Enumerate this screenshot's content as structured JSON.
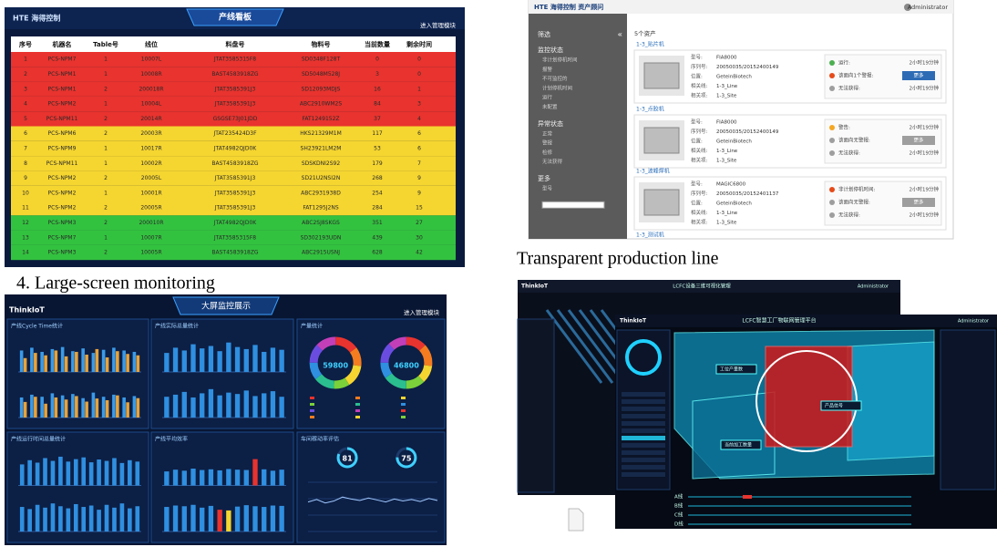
{
  "board": {
    "logo": "HTE 海得控制",
    "title": "产线看板",
    "link": "进入管理模块",
    "columns": [
      "序号",
      "机器名",
      "Table号",
      "线位",
      "料盘号",
      "物料号",
      "当前数量",
      "剩余时间"
    ],
    "rows": [
      [
        1,
        "PCS-NPM7",
        1,
        "10007L",
        "JTAT3585315F8",
        "SD0348F128T",
        0,
        0
      ],
      [
        2,
        "PCS-NPM1",
        1,
        "10008R",
        "BAST4583918ZG",
        "SD5048M528J",
        3,
        0
      ],
      [
        3,
        "PCS-NPM1",
        2,
        "200018R",
        "JTAT3585391J3",
        "SD12093MDJS",
        16,
        1
      ],
      [
        4,
        "PCS-NPM2",
        1,
        "10004L",
        "JTAT3585391J3",
        "ABC2910WM2S",
        84,
        3
      ],
      [
        5,
        "PCS-NPM11",
        2,
        "20014R",
        "GSGSE73J01JDD",
        "FAT1249152Z",
        37,
        4
      ],
      [
        6,
        "PCS-NPM6",
        2,
        "20003R",
        "JTAT235424D3F",
        "HKS21329M1M",
        117,
        6
      ],
      [
        7,
        "PCS-NPM9",
        1,
        "10017R",
        "JTAT4982QJD0K",
        "SH23921LM2M",
        53,
        6
      ],
      [
        8,
        "PCS-NPM11",
        1,
        "10002R",
        "BAST4583918ZG",
        "SDSKDNI2S92",
        179,
        7
      ],
      [
        9,
        "PCS-NPM2",
        2,
        "20005L",
        "JTAT3585391J3",
        "SD21U2NSI2N",
        268,
        9
      ],
      [
        10,
        "PCS-NPM2",
        1,
        "10001R",
        "JTAT3585391J3",
        "ABC2931938D",
        254,
        9
      ],
      [
        11,
        "PCS-NPM2",
        2,
        "20005R",
        "JTAT3585391J3",
        "FAT1295J2NS",
        284,
        15
      ],
      [
        12,
        "PCS-NPM3",
        2,
        "200010R",
        "JTAT4982QJD0K",
        "ABC2SJ8SKGS",
        351,
        27
      ],
      [
        13,
        "PCS-NPM7",
        1,
        "10007R",
        "JTAT3585315F8",
        "SD302193UDN",
        439,
        30
      ],
      [
        14,
        "PCS-NPM3",
        2,
        "10005R",
        "BAST4583918ZG",
        "ABC2915USNJ",
        628,
        42
      ]
    ],
    "row_colors": [
      "#e8332e",
      "#e8332e",
      "#e8332e",
      "#e8332e",
      "#e8332e",
      "#f5d530",
      "#f5d530",
      "#f5d530",
      "#f5d530",
      "#f5d530",
      "#f5d530",
      "#33c23f",
      "#33c23f",
      "#33c23f"
    ]
  },
  "captions": [
    "4. Large-screen monitoring",
    "Transparent production line"
  ],
  "assets": {
    "logo": "HTE 海得控制 资产顾问",
    "user": "Administrator",
    "filter": "筛选",
    "collapse": "«",
    "sidebar": [
      {
        "heading": "监控状态",
        "items": [
          "非计划停机时间",
          "报警",
          "不可监控的",
          "计划停机时间",
          "运行",
          "未配置"
        ]
      },
      {
        "heading": "异常状态",
        "items": [
          "正常",
          "警报",
          "检修",
          "无法获得"
        ]
      },
      {
        "heading": "更多",
        "items": [
          "型号"
        ]
      }
    ],
    "count": "5个资产",
    "cards": [
      {
        "name": "1-3_贴片机",
        "fields": [
          [
            "型号:",
            "FIA8000"
          ],
          [
            "序列号:",
            "20050035/20152400149"
          ],
          [
            "位置:",
            "GeteinBiotech"
          ],
          [
            "相关线:",
            "1-3_Line"
          ],
          [
            "相关项:",
            "1-3_Site"
          ]
        ],
        "status": [
          {
            "label": "运行:",
            "value": "2小时19分钟",
            "color": "#4caf50"
          },
          {
            "label": "该面向1个警报:",
            "value": "更多",
            "color": "#e64a19"
          },
          {
            "label": "无法获得:",
            "value": "2小时19分钟",
            "color": "#9e9e9e"
          }
        ]
      },
      {
        "name": "1-3_点胶机",
        "fields": [
          [
            "型号:",
            "FIA8000"
          ],
          [
            "序列号:",
            "20050035/20152400149"
          ],
          [
            "位置:",
            "GeteinBiotech"
          ],
          [
            "相关线:",
            "1-3_Line"
          ],
          [
            "相关项:",
            "1-3_Site"
          ]
        ],
        "status": [
          {
            "label": "警告:",
            "value": "2小时19分钟",
            "color": "#f5a623"
          },
          {
            "label": "该面向无警报:",
            "value": "更多",
            "color": "#9e9e9e"
          },
          {
            "label": "无法获得:",
            "value": "2小时19分钟",
            "color": "#9e9e9e"
          }
        ]
      },
      {
        "name": "1-3_波峰焊机",
        "fields": [
          [
            "型号:",
            "MAGIC6800"
          ],
          [
            "序列号:",
            "20050035/20152401137"
          ],
          [
            "位置:",
            "GeteinBiotech"
          ],
          [
            "相关线:",
            "1-3_Line"
          ],
          [
            "相关项:",
            "1-3_Site"
          ]
        ],
        "status": [
          {
            "label": "非计划停机时间:",
            "value": "2小时19分钟",
            "color": "#e64a19"
          },
          {
            "label": "该面向无警报:",
            "value": "更多",
            "color": "#9e9e9e"
          },
          {
            "label": "无法获得:",
            "value": "2小时19分钟",
            "color": "#9e9e9e"
          }
        ]
      }
    ],
    "more": "1-3_测试机"
  },
  "dashboard": {
    "logo": "ThinkIoT",
    "title": "大屏监控展示",
    "link": "进入管理模块",
    "ylim": [
      0,
      100
    ],
    "panels": [
      {
        "title": "产线Cycle Time统计",
        "type": "bar",
        "charts": [
          {
            "series": [
              {
                "color": "#3a9be8",
                "values": [
                  62,
                  70,
                  58,
                  66,
                  72,
                  60,
                  68,
                  55,
                  64,
                  70,
                  62,
                  58
                ]
              },
              {
                "color": "#e8a33a",
                "values": [
                  40,
                  55,
                  48,
                  62,
                  45,
                  58,
                  50,
                  66,
                  42,
                  60,
                  52,
                  48
                ]
              }
            ]
          },
          {
            "series": [
              {
                "color": "#3a9be8",
                "values": [
                  58,
                  66,
                  60,
                  70,
                  64,
                  68,
                  56,
                  72,
                  60,
                  66,
                  58,
                  62
                ]
              },
              {
                "color": "#e8a33a",
                "values": [
                  45,
                  60,
                  40,
                  58,
                  52,
                  62,
                  46,
                  55,
                  50,
                  64,
                  44,
                  56
                ]
              }
            ]
          }
        ]
      },
      {
        "title": "产线实际总量统计",
        "type": "bar",
        "charts": [
          {
            "series": [
              {
                "color": "#2f8fe0",
                "values": [
                  55,
                  70,
                  62,
                  80,
                  68,
                  75,
                  60,
                  85,
                  72,
                  66,
                  78,
                  58,
                  70,
                  64
                ]
              }
            ]
          },
          {
            "series": [
              {
                "color": "#2f8fe0",
                "values": [
                  60,
                  66,
                  74,
                  58,
                  70,
                  82,
                  64,
                  72,
                  68,
                  78,
                  62,
                  70,
                  76,
                  60
                ]
              }
            ]
          }
        ]
      },
      {
        "title": "产量统计",
        "type": "donut",
        "charts": [
          {
            "center": 59800,
            "values": [
              15,
              12,
              14,
              10,
              13,
              11,
              12,
              13
            ]
          },
          {
            "center": 46800,
            "values": [
              13,
              14,
              11,
              12,
              15,
              10,
              13,
              12
            ]
          }
        ],
        "colors": [
          "#e8332e",
          "#f57c1f",
          "#f5d530",
          "#7bd13a",
          "#2bbf8f",
          "#2f8fe0",
          "#6a4de0",
          "#c23fb8"
        ]
      },
      {
        "title": "产线运行时间总量统计",
        "type": "bar",
        "charts": [
          {
            "series": [
              {
                "color": "#2f8fe0",
                "values": [
                  60,
                  72,
                  65,
                  78,
                  70,
                  82,
                  68,
                  75,
                  80,
                  66,
                  74,
                  70,
                  78,
                  64,
                  72,
                  68
                ]
              }
            ]
          },
          {
            "series": [
              {
                "color": "#2f8fe0",
                "values": [
                  70,
                  64,
                  76,
                  68,
                  80,
                  72,
                  66,
                  78,
                  70,
                  74,
                  62,
                  76,
                  68,
                  80,
                  66,
                  72
                ]
              }
            ]
          }
        ]
      },
      {
        "title": "产线平均效率",
        "type": "bar",
        "charts": [
          {
            "series": [
              {
                "values": [
                  40,
                  45,
                  42,
                  48,
                  44,
                  46,
                  43,
                  47,
                  45,
                  44,
                  75,
                  46,
                  42,
                  45
                ],
                "colors": [
                  "#2f8fe0",
                  "#2f8fe0",
                  "#2f8fe0",
                  "#2f8fe0",
                  "#2f8fe0",
                  "#2f8fe0",
                  "#2f8fe0",
                  "#2f8fe0",
                  "#2f8fe0",
                  "#2f8fe0",
                  "#e8332e",
                  "#2f8fe0",
                  "#2f8fe0",
                  "#2f8fe0"
                ]
              }
            ]
          },
          {
            "series": [
              {
                "values": [
                  70,
                  74,
                  72,
                  76,
                  68,
                  73,
                  62,
                  60,
                  71,
                  75,
                  72,
                  70,
                  74,
                  73
                ],
                "colors": [
                  "#2f8fe0",
                  "#2f8fe0",
                  "#2f8fe0",
                  "#2f8fe0",
                  "#2f8fe0",
                  "#2f8fe0",
                  "#e8332e",
                  "#f5d530",
                  "#2f8fe0",
                  "#2f8fe0",
                  "#2f8fe0",
                  "#2f8fe0",
                  "#2f8fe0",
                  "#2f8fe0"
                ]
              }
            ]
          }
        ]
      },
      {
        "title": "车间稼动率评估",
        "type": "gauge",
        "gauges": [
          81,
          75
        ],
        "line": [
          60,
          65,
          58,
          62,
          70,
          66,
          63,
          68,
          64,
          60,
          66,
          62,
          65,
          61,
          67,
          63
        ]
      }
    ]
  },
  "twin": {
    "back_logo": "ThinkIoT",
    "back_title": "LCFC设备三维可视化管理",
    "back_user": "Administrator",
    "front_logo": "ThinkIoT",
    "front_title": "LCFC智慧工厂物联网管理平台",
    "front_user": "Administrator",
    "labels": [
      "工位产量数",
      "产品信号",
      "当前加工数量"
    ],
    "lines": [
      "A线",
      "B线",
      "C线",
      "D线"
    ]
  }
}
